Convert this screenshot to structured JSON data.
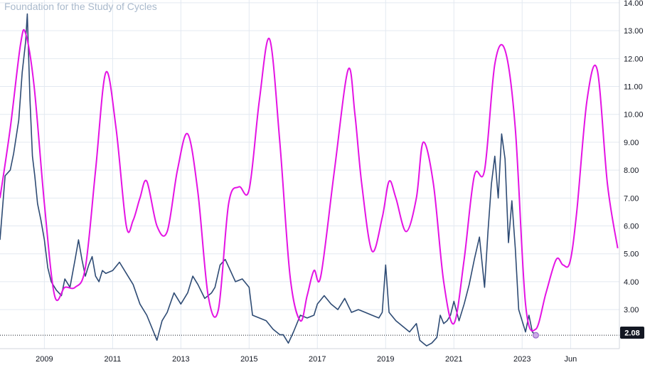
{
  "watermark": "Foundation for the Study of Cycles",
  "last_price_label": "2.08",
  "colors": {
    "price": "#2e4b74",
    "cycle": "#e413e4",
    "grid": "#e3e9f1",
    "axis_text": "#131722",
    "price_label_bg": "#131722",
    "marker": "#c9a9e4"
  },
  "chart_data": {
    "type": "line",
    "title": "",
    "xlabel": "",
    "ylabel": "",
    "x_range": [
      2007.7,
      2025.85
    ],
    "ylim": [
      1.6,
      14.1
    ],
    "y_ticks": [
      "3.00",
      "4.00",
      "5.00",
      "6.00",
      "7.00",
      "8.00",
      "9.00",
      "10.00",
      "11.00",
      "12.00",
      "13.00",
      "14.00"
    ],
    "x_ticks": [
      {
        "x": 2009.0,
        "label": "2009"
      },
      {
        "x": 2011.0,
        "label": "2011"
      },
      {
        "x": 2013.0,
        "label": "2013"
      },
      {
        "x": 2015.0,
        "label": "2015"
      },
      {
        "x": 2017.0,
        "label": "2017"
      },
      {
        "x": 2019.0,
        "label": "2019"
      },
      {
        "x": 2021.0,
        "label": "2021"
      },
      {
        "x": 2023.0,
        "label": "2023"
      },
      {
        "x": 2024.42,
        "label": "Jun"
      }
    ],
    "last_value": 2.08,
    "series": [
      {
        "key": "price",
        "x": [
          2007.7,
          2007.85,
          2008.0,
          2008.1,
          2008.25,
          2008.35,
          2008.45,
          2008.5,
          2008.58,
          2008.65,
          2008.72,
          2008.8,
          2008.9,
          2009.0,
          2009.1,
          2009.2,
          2009.35,
          2009.5,
          2009.6,
          2009.75,
          2009.9,
          2010.0,
          2010.1,
          2010.2,
          2010.3,
          2010.4,
          2010.5,
          2010.6,
          2010.7,
          2010.8,
          2011.0,
          2011.2,
          2011.4,
          2011.6,
          2011.8,
          2012.0,
          2012.2,
          2012.3,
          2012.45,
          2012.6,
          2012.8,
          2013.0,
          2013.2,
          2013.35,
          2013.5,
          2013.7,
          2013.9,
          2014.0,
          2014.15,
          2014.3,
          2014.45,
          2014.6,
          2014.8,
          2015.0,
          2015.1,
          2015.3,
          2015.5,
          2015.7,
          2015.9,
          2016.0,
          2016.15,
          2016.3,
          2016.5,
          2016.7,
          2016.9,
          2017.0,
          2017.2,
          2017.4,
          2017.6,
          2017.8,
          2018.0,
          2018.2,
          2018.4,
          2018.6,
          2018.8,
          2018.9,
          2019.0,
          2019.1,
          2019.3,
          2019.5,
          2019.7,
          2019.9,
          2020.0,
          2020.1,
          2020.2,
          2020.35,
          2020.5,
          2020.6,
          2020.7,
          2020.8,
          2020.9,
          2021.0,
          2021.15,
          2021.3,
          2021.45,
          2021.6,
          2021.75,
          2021.9,
          2022.0,
          2022.1,
          2022.2,
          2022.3,
          2022.4,
          2022.5,
          2022.6,
          2022.7,
          2022.8,
          2022.9,
          2023.0,
          2023.1,
          2023.2,
          2023.3,
          2023.4
        ],
        "values": [
          5.5,
          7.8,
          8.0,
          8.6,
          9.8,
          11.5,
          12.6,
          13.6,
          10.5,
          8.5,
          7.8,
          6.8,
          6.2,
          5.5,
          4.5,
          4.0,
          3.7,
          3.5,
          4.1,
          3.8,
          4.8,
          5.5,
          4.8,
          4.2,
          4.6,
          4.9,
          4.2,
          4.0,
          4.4,
          4.3,
          4.4,
          4.7,
          4.3,
          3.9,
          3.2,
          2.8,
          2.2,
          1.9,
          2.6,
          2.9,
          3.6,
          3.2,
          3.6,
          4.2,
          3.9,
          3.4,
          3.6,
          3.8,
          4.6,
          4.8,
          4.4,
          4.0,
          4.1,
          3.8,
          2.8,
          2.7,
          2.6,
          2.3,
          2.1,
          2.1,
          1.8,
          2.2,
          2.8,
          2.7,
          2.8,
          3.2,
          3.5,
          3.2,
          3.0,
          3.4,
          2.9,
          3.0,
          2.9,
          2.8,
          2.7,
          2.9,
          4.6,
          2.9,
          2.6,
          2.4,
          2.2,
          2.5,
          1.9,
          1.8,
          1.7,
          1.8,
          2.0,
          2.8,
          2.5,
          2.6,
          2.8,
          3.3,
          2.6,
          3.2,
          3.9,
          4.8,
          5.6,
          3.8,
          5.8,
          7.5,
          8.5,
          7.0,
          9.3,
          8.4,
          5.4,
          6.9,
          5.2,
          3.0,
          2.6,
          2.2,
          2.8,
          2.2,
          2.08
        ]
      },
      {
        "key": "cycle",
        "x": [
          2007.7,
          2008.0,
          2008.3,
          2008.45,
          2008.7,
          2009.0,
          2009.3,
          2009.6,
          2009.9,
          2010.2,
          2010.5,
          2010.8,
          2011.1,
          2011.4,
          2011.6,
          2011.8,
          2012.0,
          2012.3,
          2012.6,
          2012.9,
          2013.2,
          2013.5,
          2013.8,
          2014.1,
          2014.4,
          2014.7,
          2015.0,
          2015.3,
          2015.6,
          2015.9,
          2016.2,
          2016.5,
          2016.7,
          2016.9,
          2017.1,
          2017.5,
          2017.9,
          2018.1,
          2018.3,
          2018.6,
          2018.9,
          2019.1,
          2019.3,
          2019.6,
          2019.9,
          2020.1,
          2020.4,
          2020.7,
          2021.0,
          2021.3,
          2021.6,
          2021.9,
          2022.2,
          2022.5,
          2022.8,
          2023.1,
          2023.4,
          2023.7,
          2024.0,
          2024.2,
          2024.4,
          2024.6,
          2024.9,
          2025.2,
          2025.5,
          2025.8
        ],
        "values": [
          7.0,
          9.5,
          12.5,
          12.9,
          11.0,
          6.8,
          3.5,
          3.8,
          3.8,
          4.5,
          8.0,
          11.5,
          9.5,
          6.0,
          6.2,
          7.0,
          7.6,
          6.0,
          5.8,
          8.0,
          9.3,
          7.2,
          3.5,
          3.0,
          6.8,
          7.4,
          7.3,
          10.5,
          12.7,
          9.0,
          4.2,
          2.6,
          3.5,
          4.4,
          4.2,
          8.0,
          11.6,
          10.0,
          7.5,
          5.1,
          6.3,
          7.6,
          7.0,
          5.8,
          7.0,
          9.0,
          7.5,
          4.0,
          2.5,
          4.8,
          7.8,
          8.0,
          11.8,
          12.3,
          9.5,
          3.2,
          2.3,
          3.6,
          4.8,
          4.6,
          4.7,
          6.5,
          10.5,
          11.6,
          7.5,
          5.2
        ]
      }
    ]
  }
}
